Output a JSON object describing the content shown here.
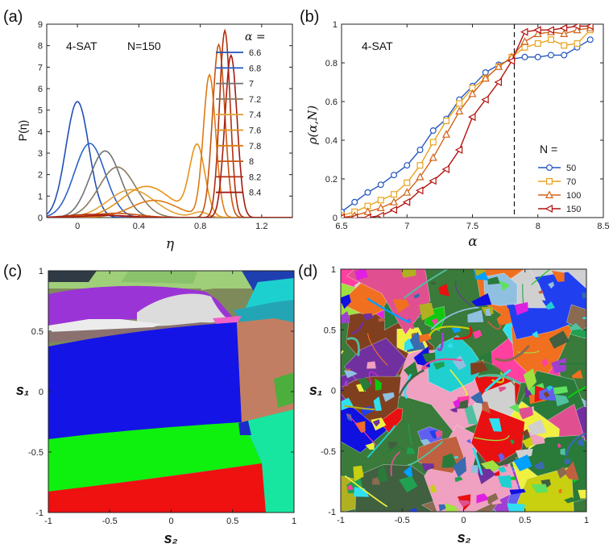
{
  "colors": {
    "series": [
      "#1f4fb4",
      "#2d63c8",
      "#6f7377",
      "#8a7a5e",
      "#e0a23a",
      "#e69218",
      "#de7a14",
      "#c85412",
      "#b22e0f",
      "#a21c12"
    ],
    "b_series": [
      "#2457c0",
      "#e8a41c",
      "#d2641a",
      "#b3120e"
    ]
  },
  "chart_data": [
    {
      "panel": "(a)",
      "type": "line",
      "title": "",
      "annotations": [
        "4-SAT",
        "N=150"
      ],
      "xlabel": "η",
      "ylabel": "P(η)",
      "xlim": [
        -0.2,
        1.4
      ],
      "ylim": [
        0,
        9
      ],
      "xticks": [
        "0",
        "0.4",
        "0.8",
        "1.2"
      ],
      "yticks": [
        "0",
        "1",
        "2",
        "3",
        "4",
        "5",
        "6",
        "7",
        "8",
        "9"
      ],
      "legend_title": "α =",
      "legend_position": "top-right",
      "series": [
        {
          "name": "6.6",
          "peaks": [
            [
              0.0,
              5.4,
              0.075
            ]
          ]
        },
        {
          "name": "6.8",
          "peaks": [
            [
              0.08,
              3.45,
              0.1
            ]
          ]
        },
        {
          "name": "7",
          "peaks": [
            [
              0.18,
              3.1,
              0.1
            ]
          ]
        },
        {
          "name": "7.2",
          "peaks": [
            [
              0.26,
              2.35,
              0.12
            ]
          ]
        },
        {
          "name": "7.4",
          "peaks": [
            [
              0.35,
              1.3,
              0.15
            ],
            [
              0.8,
              0.25,
              0.05
            ]
          ]
        },
        {
          "name": "7.6",
          "peaks": [
            [
              0.45,
              1.45,
              0.16
            ],
            [
              0.78,
              3.25,
              0.05
            ]
          ]
        },
        {
          "name": "7.8",
          "peaks": [
            [
              0.5,
              0.8,
              0.15
            ],
            [
              0.86,
              6.6,
              0.04
            ]
          ]
        },
        {
          "name": "8",
          "peaks": [
            [
              0.25,
              0.2,
              0.15
            ],
            [
              0.92,
              8.05,
              0.04
            ]
          ]
        },
        {
          "name": "8.2",
          "peaks": [
            [
              0.1,
              0.15,
              0.15
            ],
            [
              0.96,
              8.7,
              0.035
            ]
          ]
        },
        {
          "name": "8.4",
          "peaks": [
            [
              0.2,
              0.1,
              0.15
            ],
            [
              1.0,
              7.55,
              0.04
            ]
          ]
        }
      ]
    },
    {
      "panel": "(b)",
      "type": "line",
      "title": "",
      "annotation": "4-SAT",
      "xlabel": "α",
      "ylabel": "ρ(α,N)",
      "xlim": [
        6.5,
        8.5
      ],
      "ylim": [
        0,
        1
      ],
      "xticks": [
        "6.5",
        "7",
        "7.5",
        "8",
        "8.5"
      ],
      "yticks": [
        "0",
        "0.2",
        "0.4",
        "0.6",
        "0.8",
        "1"
      ],
      "vline_x": 7.82,
      "legend_title": "N =",
      "legend_position": "bottom-right",
      "x": [
        6.5,
        6.6,
        6.7,
        6.8,
        6.9,
        7.0,
        7.1,
        7.2,
        7.3,
        7.4,
        7.5,
        7.6,
        7.7,
        7.8,
        7.9,
        8.0,
        8.1,
        8.2,
        8.3,
        8.4
      ],
      "series": [
        {
          "name": "50",
          "marker": "circle",
          "values": [
            0.03,
            0.08,
            0.13,
            0.17,
            0.22,
            0.27,
            0.35,
            0.45,
            0.51,
            0.61,
            0.68,
            0.75,
            0.79,
            0.82,
            0.83,
            0.83,
            0.84,
            0.84,
            0.88,
            0.92
          ]
        },
        {
          "name": "70",
          "marker": "square",
          "values": [
            0.01,
            0.03,
            0.06,
            0.09,
            0.12,
            0.18,
            0.27,
            0.39,
            0.5,
            0.59,
            0.67,
            0.72,
            0.78,
            0.83,
            0.88,
            0.9,
            0.92,
            0.89,
            0.9,
            0.97
          ]
        },
        {
          "name": "100",
          "marker": "triangle",
          "values": [
            0.0,
            0.01,
            0.03,
            0.05,
            0.08,
            0.13,
            0.21,
            0.31,
            0.43,
            0.55,
            0.64,
            0.72,
            0.78,
            0.83,
            0.91,
            0.95,
            0.96,
            0.95,
            0.97,
            0.98
          ]
        },
        {
          "name": "150",
          "marker": "tri-left",
          "values": [
            0.0,
            0.0,
            0.0,
            0.01,
            0.04,
            0.08,
            0.14,
            0.19,
            0.25,
            0.35,
            0.52,
            0.61,
            0.7,
            0.81,
            0.96,
            0.97,
            0.97,
            0.98,
            0.99,
            0.99
          ]
        }
      ]
    },
    {
      "panel": "(c)",
      "type": "heatmap",
      "title": "",
      "xlabel": "s₂",
      "ylabel": "s₁",
      "xlim": [
        -1,
        1
      ],
      "ylim": [
        -1,
        1
      ],
      "xticks": [
        "-1",
        "-0.5",
        "0",
        "0.5",
        "1"
      ],
      "yticks": [
        "-1",
        "-0.5",
        "0",
        "0.5",
        "1"
      ]
    },
    {
      "panel": "(d)",
      "type": "heatmap",
      "title": "",
      "xlabel": "s₂",
      "ylabel": "s₁",
      "xlim": [
        -1,
        1
      ],
      "ylim": [
        -1,
        1
      ],
      "xticks": [
        "-1",
        "-0.5",
        "0",
        "0.5",
        "1"
      ],
      "yticks": [
        "-1",
        "-0.5",
        "0",
        "0.5",
        "1"
      ]
    }
  ]
}
